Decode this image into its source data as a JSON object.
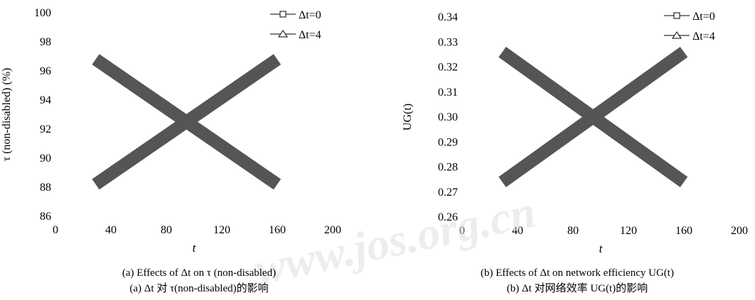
{
  "chart_data": [
    {
      "type": "line",
      "panel": "a",
      "ylabel": "τ (non-disabled) (%)",
      "xlabel": "t",
      "xlim": [
        0,
        200
      ],
      "ylim": [
        86,
        100
      ],
      "x_ticks": [
        "0",
        "40",
        "80",
        "120",
        "160",
        "200"
      ],
      "y_ticks": [
        "86",
        "88",
        "90",
        "92",
        "94",
        "96",
        "98",
        "100"
      ],
      "grid": false,
      "legend_position": "top-right",
      "series": [
        {
          "name": "Δt=0",
          "marker": "square",
          "x": [
            29,
            160
          ],
          "y": [
            88.2,
            96.8
          ]
        },
        {
          "name": "Δt=4",
          "marker": "triangle",
          "x": [
            29,
            160
          ],
          "y": [
            96.8,
            88.2
          ]
        }
      ],
      "caption_en": "(a) Effects of Δt on τ (non-disabled)",
      "caption_zh": "(a) Δt 对 τ(non-disabled)的影响"
    },
    {
      "type": "line",
      "panel": "b",
      "ylabel": "UG(t)",
      "xlabel": "t",
      "xlim": [
        0,
        200
      ],
      "ylim": [
        0.26,
        0.34
      ],
      "x_ticks": [
        "0",
        "40",
        "80",
        "120",
        "160",
        "200"
      ],
      "y_ticks": [
        "0.26",
        "0.27",
        "0.28",
        "0.29",
        "0.30",
        "0.31",
        "0.32",
        "0.33",
        "0.34"
      ],
      "grid": false,
      "legend_position": "top-right",
      "series": [
        {
          "name": "Δt=0",
          "marker": "square",
          "x": [
            29,
            160
          ],
          "y": [
            0.274,
            0.326
          ]
        },
        {
          "name": "Δt=4",
          "marker": "triangle",
          "x": [
            29,
            160
          ],
          "y": [
            0.326,
            0.274
          ]
        }
      ],
      "caption_en": "(b) Effects of Δt on network efficiency UG(t)",
      "caption_zh": "(b) Δt 对网络效率 UG(t)的影响"
    }
  ],
  "colors": {
    "series_stroke": "#555555",
    "text": "#000000",
    "watermark": "#dcdcdc"
  },
  "watermark_text": "www.jos.org.cn"
}
